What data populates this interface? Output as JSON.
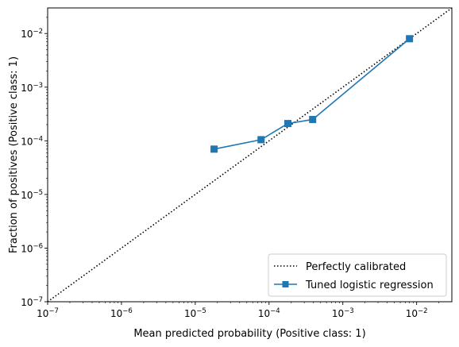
{
  "chart_data": {
    "type": "line",
    "xlabel": "Mean predicted probability (Positive class: 1)",
    "ylabel": "Fraction of positives (Positive class: 1)",
    "xscale": "log",
    "yscale": "log",
    "xlim": [
      1e-07,
      0.03
    ],
    "ylim": [
      1e-07,
      0.03
    ],
    "grid": false,
    "legend_position": "lower right",
    "x_ticks": [
      {
        "value": 1e-07,
        "base": "10",
        "exp": "−7"
      },
      {
        "value": 1e-06,
        "base": "10",
        "exp": "−6"
      },
      {
        "value": 1e-05,
        "base": "10",
        "exp": "−5"
      },
      {
        "value": 0.0001,
        "base": "10",
        "exp": "−4"
      },
      {
        "value": 0.001,
        "base": "10",
        "exp": "−3"
      },
      {
        "value": 0.01,
        "base": "10",
        "exp": "−2"
      }
    ],
    "y_ticks": [
      {
        "value": 1e-07,
        "base": "10",
        "exp": "−7"
      },
      {
        "value": 1e-06,
        "base": "10",
        "exp": "−6"
      },
      {
        "value": 1e-05,
        "base": "10",
        "exp": "−5"
      },
      {
        "value": 0.0001,
        "base": "10",
        "exp": "−4"
      },
      {
        "value": 0.001,
        "base": "10",
        "exp": "−3"
      },
      {
        "value": 0.01,
        "base": "10",
        "exp": "−2"
      }
    ],
    "series": [
      {
        "name": "Perfectly calibrated",
        "style": "dotted",
        "color": "#000000",
        "x": [
          1e-07,
          0.03
        ],
        "y": [
          1e-07,
          0.03
        ]
      },
      {
        "name": "Tuned logistic regression",
        "style": "solid",
        "marker": "square",
        "color": "#1f77b4",
        "x": [
          1.8e-05,
          7.8e-05,
          0.00018,
          0.00039,
          0.008
        ],
        "y": [
          7e-05,
          0.000105,
          0.00021,
          0.00025,
          0.008
        ]
      }
    ]
  }
}
